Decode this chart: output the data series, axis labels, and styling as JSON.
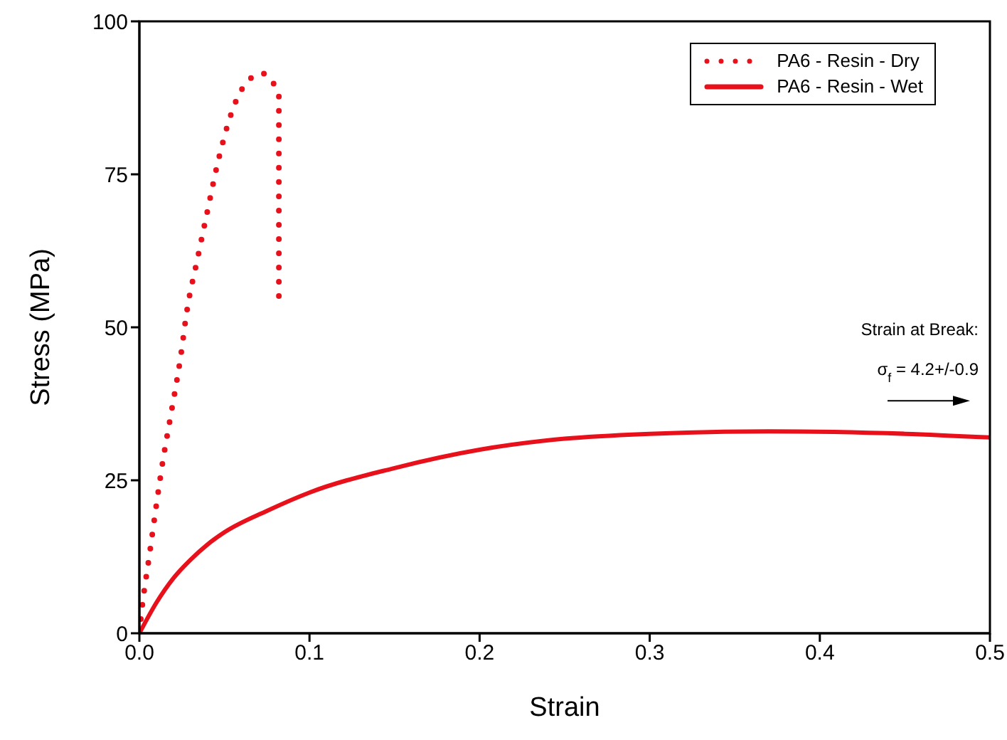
{
  "chart_data": {
    "type": "line",
    "xlabel": "Strain",
    "ylabel": "Stress (MPa)",
    "xlim": [
      0,
      0.5
    ],
    "xticks": [
      {
        "value": 0,
        "label": "0.0"
      },
      0.1,
      0.2,
      0.3,
      0.4,
      0.5
    ],
    "ylim": [
      0,
      100
    ],
    "yticks": [
      0,
      25,
      50,
      75,
      100
    ],
    "grid": false,
    "legend": "top right",
    "annotations": [
      "Strain at Break:",
      "σ$_{f}$ = 4.2+/-0.9"
    ],
    "series": [
      {
        "name": "PA6 - Resin - Dry",
        "color": "#e8101a",
        "line_style": "dotted",
        "x": [
          0,
          0.0015,
          0.0057,
          0.014,
          0.019,
          0.024,
          0.028,
          0.034,
          0.04,
          0.046,
          0.054,
          0.06,
          0.072,
          0.082,
          0.082
        ],
        "values": [
          0,
          4,
          12.4,
          28.5,
          36.5,
          44.7,
          52.8,
          61,
          69,
          76.8,
          84.9,
          88.8,
          91.5,
          88,
          55
        ]
      },
      {
        "name": "PA6 - Resin - Wet",
        "color": "#e8101a",
        "line_style": "solid",
        "x": [
          0,
          0.01,
          0.02,
          0.03,
          0.04,
          0.05,
          0.075,
          0.1,
          0.15,
          0.2,
          0.25,
          0.3,
          0.37,
          0.45,
          0.5
        ],
        "values": [
          0,
          5,
          9,
          12,
          14.5,
          16.5,
          20,
          23,
          27,
          30,
          31.8,
          32.6,
          33,
          32.6,
          32
        ]
      }
    ]
  }
}
